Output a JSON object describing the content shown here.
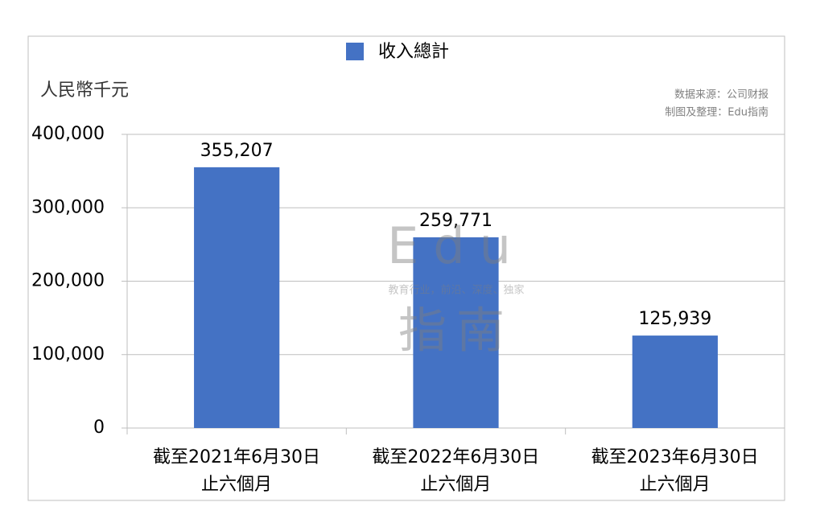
{
  "chart_data": {
    "type": "bar",
    "legend": "收入總計",
    "y_axis_label": "人民幣千元",
    "source_notes": [
      "数据来源：公司财报",
      "制图及整理：Edu指南"
    ],
    "watermark": {
      "title": "Edu",
      "subtitle": "教育行业，前沿、深度、独家",
      "name": "指南"
    },
    "categories": [
      "截至2021年6月30日\n止六個月",
      "截至2022年6月30日\n止六個月",
      "截至2023年6月30日\n止六個月"
    ],
    "values": [
      355207,
      259771,
      125939
    ],
    "value_labels": [
      "355,207",
      "259,771",
      "125,939"
    ],
    "color": "#4472c4",
    "ylim": [
      0,
      400000
    ],
    "yticks": [
      0,
      {
        "value": 100000,
        "label": "100,000"
      },
      {
        "value": 200000,
        "label": "200,000"
      },
      {
        "value": 300000,
        "label": "300,000"
      },
      {
        "value": 400000,
        "label": "400,000"
      }
    ],
    "grid": true
  }
}
